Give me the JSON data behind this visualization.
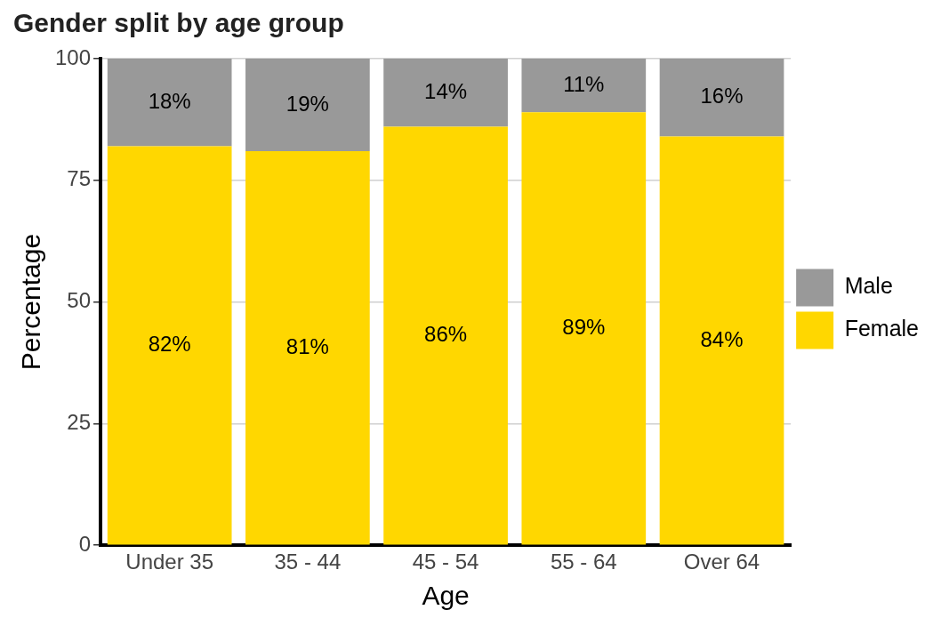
{
  "chart_data": {
    "type": "bar",
    "title": "Gender split by age group",
    "xlabel": "Age",
    "ylabel": "Percentage",
    "categories": [
      "Under 35",
      "35 - 44",
      "45 - 54",
      "55 - 64",
      "Over 64"
    ],
    "stacked": true,
    "series": [
      {
        "name": "Female",
        "color": "#ffd700",
        "values": [
          82,
          81,
          86,
          89,
          84
        ],
        "value_labels": [
          "82%",
          "81%",
          "86%",
          "89%",
          "84%"
        ]
      },
      {
        "name": "Male",
        "color": "#999999",
        "values": [
          18,
          19,
          14,
          11,
          16
        ],
        "value_labels": [
          "18%",
          "19%",
          "14%",
          "11%",
          "16%"
        ]
      }
    ],
    "ylim": [
      0,
      100
    ],
    "yticks": [
      0,
      25,
      50,
      75,
      100
    ],
    "grid": "y",
    "legend": "right"
  }
}
